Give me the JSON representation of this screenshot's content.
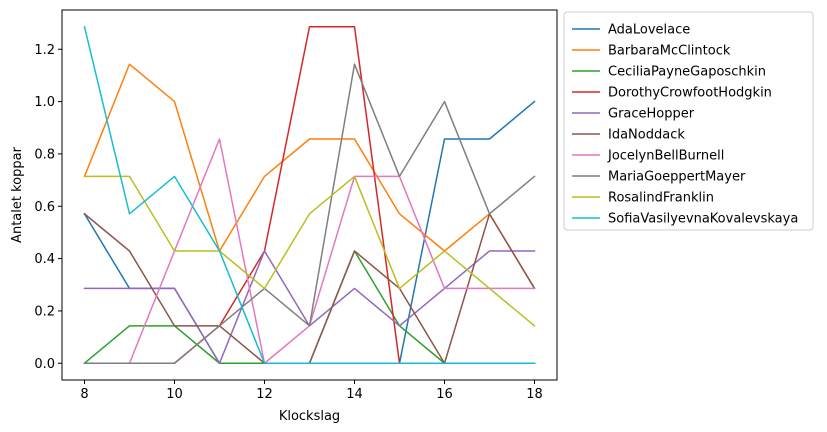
{
  "chart_data": {
    "type": "line",
    "xlabel": "Klockslag",
    "ylabel": "Antalet koppar",
    "xlim": [
      7.5,
      18.5
    ],
    "ylim": [
      -0.064,
      1.35
    ],
    "xticks": [
      8,
      10,
      12,
      14,
      16,
      18
    ],
    "yticks": [
      0.0,
      0.2,
      0.4,
      0.6,
      0.8,
      1.0,
      1.2
    ],
    "grid": false,
    "legend_position": "outside-right-top",
    "x": [
      8,
      9,
      10,
      11,
      12,
      13,
      14,
      15,
      16,
      17,
      18
    ],
    "series": [
      {
        "name": "AdaLovelace",
        "color": "#1f77b4",
        "values": [
          0.571,
          0.286,
          0.286,
          0.0,
          0.0,
          0.0,
          0.0,
          0.0,
          0.857,
          0.857,
          1.0
        ]
      },
      {
        "name": "BarbaraMcClintock",
        "color": "#ff7f0e",
        "values": [
          0.714,
          1.143,
          1.0,
          0.429,
          0.714,
          0.857,
          0.857,
          0.571,
          0.429,
          0.571,
          0.286
        ]
      },
      {
        "name": "CeciliaPayneGaposchkin",
        "color": "#2ca02c",
        "values": [
          0.0,
          0.143,
          0.143,
          0.0,
          0.0,
          0.0,
          0.429,
          0.143,
          0.0,
          0.0,
          0.0
        ]
      },
      {
        "name": "DorothyCrowfootHodgkin",
        "color": "#d62728",
        "values": [
          0.0,
          0.0,
          0.0,
          0.143,
          0.429,
          1.286,
          1.286,
          0.0,
          0.0,
          0.0,
          0.0
        ]
      },
      {
        "name": "GraceHopper",
        "color": "#9467bd",
        "values": [
          0.286,
          0.286,
          0.286,
          0.0,
          0.429,
          0.143,
          0.286,
          0.143,
          0.286,
          0.429,
          0.429
        ]
      },
      {
        "name": "IdaNoddack",
        "color": "#8c564b",
        "values": [
          0.571,
          0.429,
          0.143,
          0.143,
          0.0,
          0.0,
          0.429,
          0.286,
          0.0,
          0.571,
          0.286
        ]
      },
      {
        "name": "JocelynBellBurnell",
        "color": "#e377c2",
        "values": [
          0.0,
          0.0,
          0.429,
          0.857,
          0.0,
          0.143,
          0.714,
          0.714,
          0.286,
          0.286,
          0.286
        ]
      },
      {
        "name": "MariaGoeppertMayer",
        "color": "#7f7f7f",
        "values": [
          0.0,
          0.0,
          0.0,
          0.143,
          0.286,
          0.143,
          1.143,
          0.714,
          1.0,
          0.571,
          0.714
        ]
      },
      {
        "name": "RosalindFranklin",
        "color": "#bcbd22",
        "values": [
          0.714,
          0.714,
          0.429,
          0.429,
          0.286,
          0.571,
          0.714,
          0.286,
          0.429,
          0.286,
          0.143
        ]
      },
      {
        "name": "SofiaVasilyevnaKovalevskaya",
        "color": "#17becf",
        "values": [
          1.286,
          0.571,
          0.714,
          0.429,
          0.0,
          0.0,
          0.0,
          0.0,
          0.0,
          0.0,
          0.0
        ]
      }
    ]
  }
}
